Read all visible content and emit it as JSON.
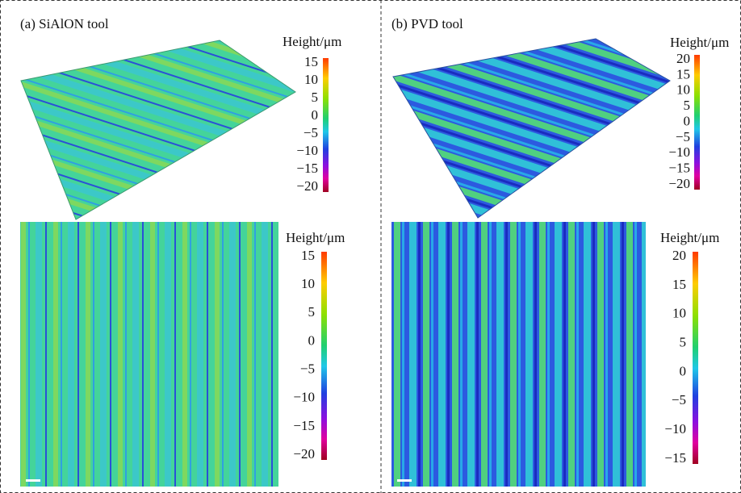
{
  "panels": [
    {
      "title": "(a) SiAlON tool",
      "surface_3d": {
        "colorbar": {
          "label": "Height/μm",
          "ticks": [
            "15",
            "10",
            "5",
            "0",
            "−5",
            "−10",
            "−15",
            "−20"
          ]
        }
      },
      "map_2d": {
        "colorbar": {
          "label": "Height/μm",
          "ticks": [
            "15",
            "10",
            "5",
            "0",
            "−5",
            "−10",
            "−15",
            "−20"
          ]
        }
      }
    },
    {
      "title": "(b) PVD tool",
      "surface_3d": {
        "colorbar": {
          "label": "Height/μm",
          "ticks": [
            "20",
            "15",
            "10",
            "5",
            "0",
            "−5",
            "−10",
            "−15",
            "−20"
          ]
        }
      },
      "map_2d": {
        "colorbar": {
          "label": "Height/μm",
          "ticks": [
            "20",
            "15",
            "10",
            "5",
            "0",
            "−5",
            "−10",
            "−15"
          ]
        }
      }
    }
  ]
}
